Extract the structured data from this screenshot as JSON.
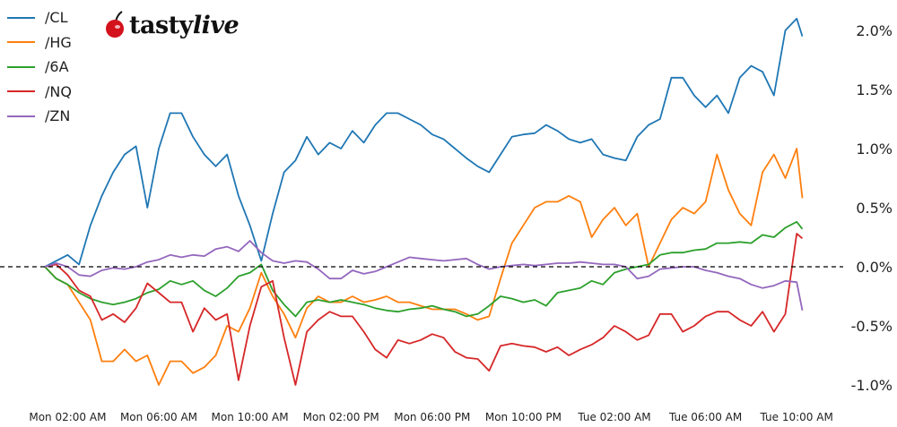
{
  "logo": {
    "text_bold": "tasty",
    "text_italic": "live"
  },
  "chart_data": {
    "type": "line",
    "title": "",
    "xlabel": "",
    "ylabel": "",
    "legend_position": "top-left",
    "grid": false,
    "zero_line": "dashed black",
    "ylim": [
      -1.1,
      2.25
    ],
    "xlim": [
      "Mon 01:00",
      "Tue 10:15"
    ],
    "x_ticks": [
      "Mon 02:00 AM",
      "Mon 06:00 AM",
      "Mon 10:00 AM",
      "Mon 02:00 PM",
      "Mon 06:00 PM",
      "Mon 10:00 PM",
      "Tue 02:00 AM",
      "Tue 06:00 AM",
      "Tue 10:00 AM"
    ],
    "y_ticks": [
      {
        "value": 2.0,
        "label": "2.0%"
      },
      {
        "value": 1.5,
        "label": "1.5%"
      },
      {
        "value": 1.0,
        "label": "1.0%"
      },
      {
        "value": 0.5,
        "label": "0.5%"
      },
      {
        "value": 0.0,
        "label": "0.0%"
      },
      {
        "value": -0.5,
        "label": "-0.5%"
      },
      {
        "value": -1.0,
        "label": "-1.0%"
      }
    ],
    "x": [
      "Mon 01:00",
      "Mon 01:30",
      "Mon 02:00",
      "Mon 02:30",
      "Mon 03:00",
      "Mon 03:30",
      "Mon 04:00",
      "Mon 04:30",
      "Mon 05:00",
      "Mon 05:30",
      "Mon 06:00",
      "Mon 06:30",
      "Mon 07:00",
      "Mon 07:30",
      "Mon 08:00",
      "Mon 08:30",
      "Mon 09:00",
      "Mon 09:30",
      "Mon 10:00",
      "Mon 10:30",
      "Mon 11:00",
      "Mon 11:30",
      "Mon 12:00",
      "Mon 12:30",
      "Mon 13:00",
      "Mon 13:30",
      "Mon 14:00",
      "Mon 14:30",
      "Mon 15:00",
      "Mon 15:30",
      "Mon 16:00",
      "Mon 16:30",
      "Mon 17:00",
      "Mon 17:30",
      "Mon 18:00",
      "Mon 18:30",
      "Mon 19:00",
      "Mon 19:30",
      "Mon 20:00",
      "Mon 20:30",
      "Mon 21:00",
      "Mon 21:30",
      "Mon 22:00",
      "Mon 22:30",
      "Mon 23:00",
      "Mon 23:30",
      "Tue 00:00",
      "Tue 00:30",
      "Tue 01:00",
      "Tue 01:30",
      "Tue 02:00",
      "Tue 02:30",
      "Tue 03:00",
      "Tue 03:30",
      "Tue 04:00",
      "Tue 04:30",
      "Tue 05:00",
      "Tue 05:30",
      "Tue 06:00",
      "Tue 06:30",
      "Tue 07:00",
      "Tue 07:30",
      "Tue 08:00",
      "Tue 08:30",
      "Tue 09:00",
      "Tue 09:30",
      "Tue 10:00",
      "Tue 10:15"
    ],
    "series": [
      {
        "name": "/CL",
        "color": "#1f77b4",
        "values": [
          0,
          0.05,
          0.1,
          0.02,
          0.35,
          0.6,
          0.8,
          0.95,
          1.02,
          0.5,
          1.0,
          1.3,
          1.3,
          1.1,
          0.95,
          0.85,
          0.95,
          0.6,
          0.35,
          0.05,
          0.45,
          0.8,
          0.9,
          1.1,
          0.95,
          1.05,
          1.0,
          1.15,
          1.05,
          1.2,
          1.3,
          1.3,
          1.25,
          1.2,
          1.12,
          1.08,
          1.0,
          0.92,
          0.85,
          0.8,
          0.95,
          1.1,
          1.12,
          1.13,
          1.2,
          1.15,
          1.08,
          1.05,
          1.08,
          0.95,
          0.92,
          0.9,
          1.1,
          1.2,
          1.25,
          1.6,
          1.6,
          1.45,
          1.35,
          1.45,
          1.3,
          1.6,
          1.7,
          1.65,
          1.45,
          2.0,
          2.1,
          1.95
        ]
      },
      {
        "name": "/HG",
        "color": "#ff7f0e",
        "values": [
          0,
          -0.1,
          -0.15,
          -0.3,
          -0.45,
          -0.8,
          -0.8,
          -0.7,
          -0.8,
          -0.75,
          -1.0,
          -0.8,
          -0.8,
          -0.9,
          -0.85,
          -0.75,
          -0.5,
          -0.55,
          -0.35,
          -0.05,
          -0.25,
          -0.4,
          -0.6,
          -0.35,
          -0.25,
          -0.3,
          -0.3,
          -0.25,
          -0.3,
          -0.28,
          -0.25,
          -0.3,
          -0.3,
          -0.33,
          -0.36,
          -0.36,
          -0.36,
          -0.4,
          -0.45,
          -0.42,
          -0.1,
          0.2,
          0.35,
          0.5,
          0.55,
          0.55,
          0.6,
          0.55,
          0.25,
          0.4,
          0.5,
          0.35,
          0.45,
          0.0,
          0.2,
          0.4,
          0.5,
          0.45,
          0.55,
          0.95,
          0.65,
          0.45,
          0.35,
          0.8,
          0.95,
          0.75,
          1.0,
          0.58
        ]
      },
      {
        "name": "/6A",
        "color": "#2ca02c",
        "values": [
          0,
          -0.1,
          -0.15,
          -0.22,
          -0.27,
          -0.3,
          -0.32,
          -0.3,
          -0.27,
          -0.22,
          -0.19,
          -0.12,
          -0.15,
          -0.12,
          -0.2,
          -0.25,
          -0.18,
          -0.08,
          -0.05,
          0.02,
          -0.2,
          -0.32,
          -0.42,
          -0.3,
          -0.28,
          -0.3,
          -0.28,
          -0.3,
          -0.32,
          -0.35,
          -0.37,
          -0.38,
          -0.36,
          -0.35,
          -0.33,
          -0.36,
          -0.38,
          -0.42,
          -0.4,
          -0.33,
          -0.25,
          -0.27,
          -0.3,
          -0.28,
          -0.33,
          -0.22,
          -0.2,
          -0.18,
          -0.12,
          -0.15,
          -0.05,
          -0.02,
          0.0,
          0.02,
          0.1,
          0.12,
          0.12,
          0.14,
          0.15,
          0.2,
          0.2,
          0.21,
          0.2,
          0.27,
          0.25,
          0.33,
          0.38,
          0.32
        ]
      },
      {
        "name": "/NQ",
        "color": "#d62728",
        "values": [
          0,
          0.02,
          -0.07,
          -0.2,
          -0.25,
          -0.45,
          -0.4,
          -0.47,
          -0.35,
          -0.14,
          -0.22,
          -0.3,
          -0.3,
          -0.55,
          -0.35,
          -0.45,
          -0.4,
          -0.96,
          -0.5,
          -0.17,
          -0.12,
          -0.6,
          -1.0,
          -0.55,
          -0.45,
          -0.38,
          -0.42,
          -0.42,
          -0.55,
          -0.7,
          -0.77,
          -0.62,
          -0.65,
          -0.62,
          -0.57,
          -0.6,
          -0.72,
          -0.77,
          -0.78,
          -0.88,
          -0.67,
          -0.65,
          -0.67,
          -0.68,
          -0.72,
          -0.68,
          -0.75,
          -0.7,
          -0.66,
          -0.6,
          -0.5,
          -0.55,
          -0.62,
          -0.58,
          -0.4,
          -0.4,
          -0.55,
          -0.5,
          -0.42,
          -0.38,
          -0.38,
          -0.45,
          -0.5,
          -0.38,
          -0.55,
          -0.4,
          0.28,
          0.24
        ]
      },
      {
        "name": "/ZN",
        "color": "#9467bd",
        "values": [
          0,
          0.03,
          0.0,
          -0.07,
          -0.08,
          -0.03,
          -0.01,
          -0.02,
          0.0,
          0.04,
          0.06,
          0.1,
          0.08,
          0.1,
          0.09,
          0.15,
          0.17,
          0.13,
          0.22,
          0.12,
          0.05,
          0.03,
          0.05,
          0.04,
          -0.02,
          -0.1,
          -0.1,
          -0.03,
          -0.06,
          -0.04,
          0.0,
          0.04,
          0.08,
          0.07,
          0.06,
          0.05,
          0.06,
          0.07,
          0.02,
          -0.02,
          0.0,
          0.01,
          0.02,
          0.01,
          0.02,
          0.03,
          0.03,
          0.04,
          0.03,
          0.02,
          0.02,
          0.0,
          -0.1,
          -0.08,
          -0.02,
          -0.01,
          0.0,
          0.0,
          -0.03,
          -0.05,
          -0.08,
          -0.1,
          -0.15,
          -0.18,
          -0.16,
          -0.12,
          -0.13,
          -0.37
        ]
      }
    ]
  }
}
